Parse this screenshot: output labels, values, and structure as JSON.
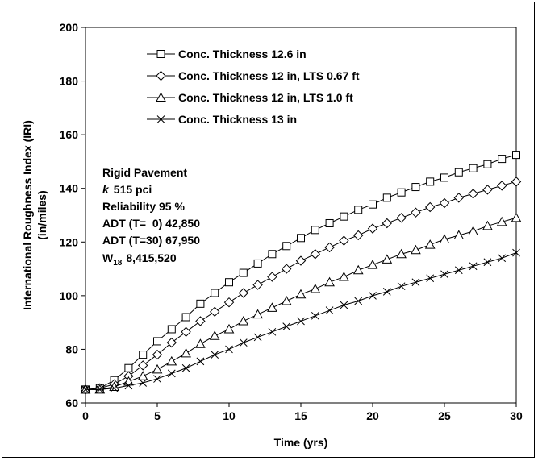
{
  "chart_data": {
    "type": "line",
    "title": "",
    "xlabel": "Time (yrs)",
    "ylabel_line1": "International Roughness Index (IRI)",
    "ylabel_line2": "(in/miles)",
    "xlim": [
      0,
      30
    ],
    "ylim": [
      60,
      200
    ],
    "xticks": [
      0,
      5,
      10,
      15,
      20,
      25,
      30
    ],
    "yticks": [
      60,
      80,
      100,
      120,
      140,
      160,
      180,
      200
    ],
    "grid": false,
    "legend_position": "top-left",
    "x": [
      0,
      1,
      2,
      3,
      4,
      5,
      6,
      7,
      8,
      9,
      10,
      11,
      12,
      13,
      14,
      15,
      16,
      17,
      18,
      19,
      20,
      21,
      22,
      23,
      24,
      25,
      26,
      27,
      28,
      29,
      30
    ],
    "series": [
      {
        "name": "Conc. Thickness 12.6 in",
        "marker": "square",
        "values": [
          65,
          65.5,
          68.5,
          73,
          78,
          83,
          87.5,
          92,
          97,
          101,
          105,
          108.5,
          112,
          115.5,
          118.5,
          121.5,
          124.5,
          127,
          129.5,
          132,
          134,
          136.5,
          138.5,
          140.5,
          142.5,
          144,
          146,
          147.5,
          149,
          151,
          152.5
        ]
      },
      {
        "name": "Conc. Thickness 12 in, LTS 0.67 ft",
        "marker": "diamond",
        "values": [
          65,
          65.5,
          67,
          70,
          74,
          78,
          82.5,
          86.5,
          90.5,
          94,
          97.5,
          101,
          104,
          107,
          110,
          113,
          115.5,
          118,
          120.5,
          122.5,
          125,
          127,
          129,
          131,
          133,
          134.5,
          136.5,
          138,
          139.5,
          141,
          142.5
        ]
      },
      {
        "name": "Conc. Thickness 12 in, LTS 1.0 ft",
        "marker": "triangle",
        "values": [
          65,
          65,
          66,
          68,
          70,
          72.5,
          75.5,
          78.5,
          82,
          85,
          87.5,
          90.5,
          93,
          95.5,
          98,
          100.5,
          102.5,
          105,
          107,
          109.5,
          111.5,
          113.5,
          115.5,
          117,
          119,
          121,
          122.5,
          124,
          126,
          127.5,
          129
        ]
      },
      {
        "name": "Conc. Thickness 13 in",
        "marker": "x",
        "values": [
          65,
          65,
          65.5,
          66.5,
          67.5,
          69,
          71,
          73,
          75.5,
          78,
          80,
          82.5,
          84.5,
          86.5,
          88.5,
          90.5,
          92.5,
          94.5,
          96.5,
          98,
          100,
          101.5,
          103.5,
          105,
          106.5,
          108,
          109.5,
          111,
          112.5,
          114,
          116
        ]
      }
    ],
    "annotation": {
      "line1": "Rigid Pavement",
      "k_symbol": "k",
      "k_value": "515 pci",
      "line3": "Reliability 95 %",
      "line4": "ADT (T=  0) 42,850",
      "line5": "ADT (T=30) 67,950",
      "w_prefix": "W",
      "w_sub": "18",
      "w_value": "8,415,520"
    }
  }
}
